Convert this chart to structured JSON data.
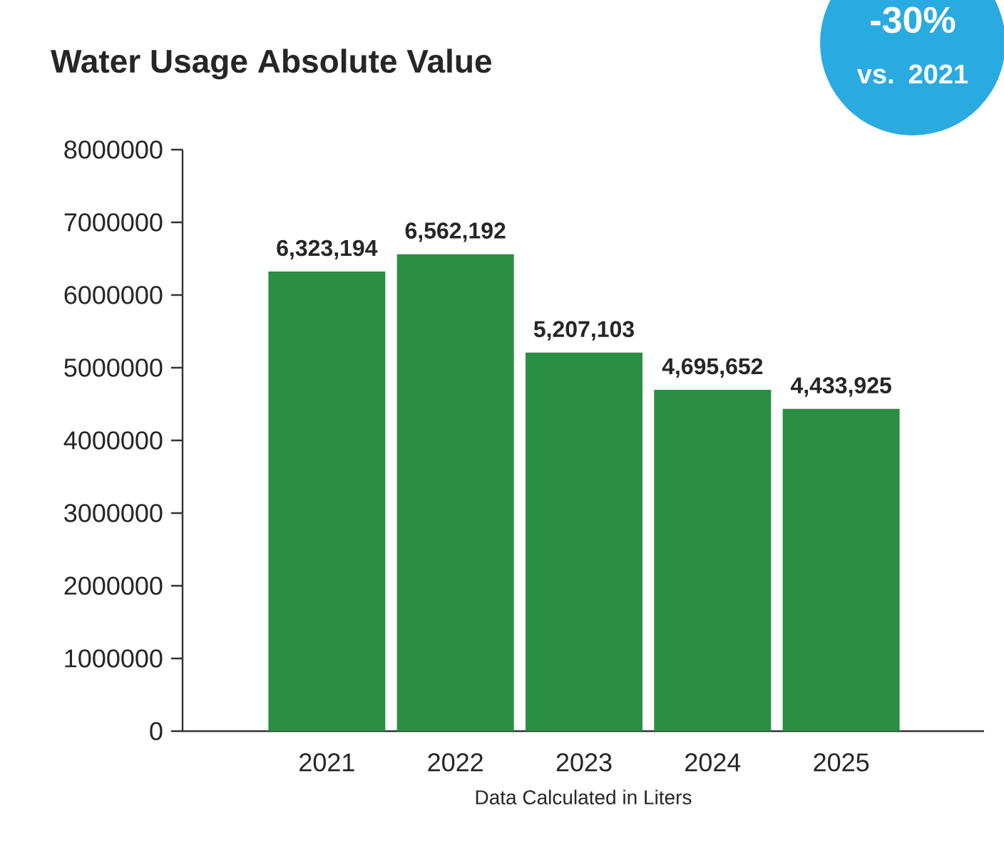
{
  "chart_data": {
    "type": "bar",
    "title": "Water Usage Absolute Value",
    "xlabel": "Data Calculated in Liters",
    "categories": [
      "2021",
      "2022",
      "2023",
      "2024",
      "2025"
    ],
    "values": [
      6323194,
      6562192,
      5207103,
      4695652,
      4433925
    ],
    "value_labels": [
      "6,323,194",
      "6,562,192",
      "5,207,103",
      "4,695,652",
      "4,433,925"
    ],
    "color": "#2a8f45",
    "ylim": [
      0,
      8000000
    ],
    "yticks": [
      0,
      1000000,
      2000000,
      3000000,
      4000000,
      5000000,
      6000000,
      7000000,
      8000000
    ],
    "grid": false,
    "annotations": [
      "-30%",
      "vs. 2021"
    ]
  }
}
